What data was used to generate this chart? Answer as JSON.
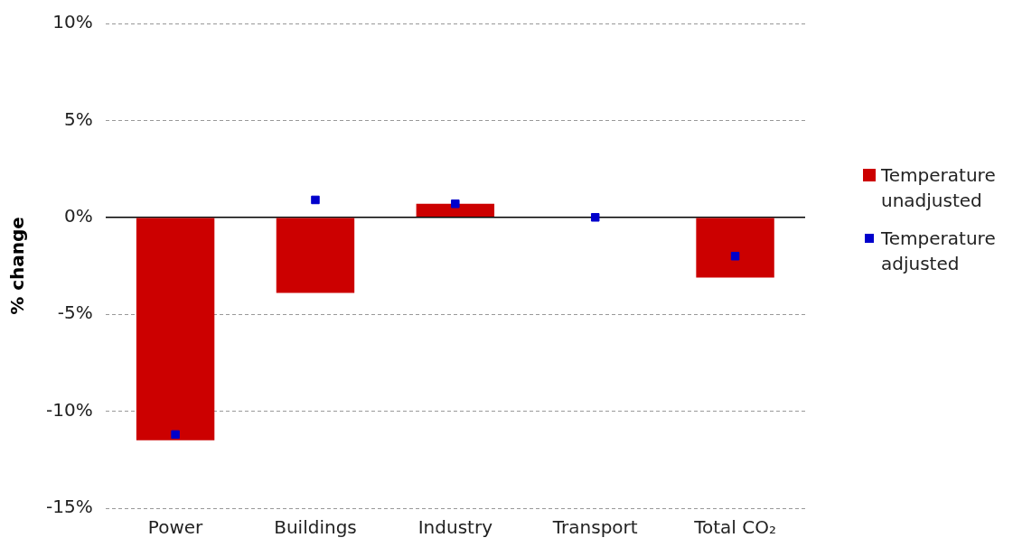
{
  "chart_data": {
    "type": "bar",
    "ylabel": "% change",
    "categories": [
      "Power",
      "Buildings",
      "Industry",
      "Transport",
      "Total CO₂"
    ],
    "series": [
      {
        "name": "Temperature unadjusted",
        "color": "#cc0000",
        "values": [
          -11.5,
          -3.9,
          0.7,
          0,
          -3.1
        ]
      },
      {
        "name": "Temperature adjusted",
        "type": "scatter",
        "marker": "square",
        "color": "#0000cc",
        "x": [
          "Power",
          "Buildings",
          "Industry",
          "Transport",
          "Total CO₂"
        ],
        "values": [
          -11.2,
          0.9,
          0.7,
          0,
          -2.0
        ]
      }
    ],
    "ylim": [
      -15,
      10
    ],
    "yticks": [
      {
        "value": -15,
        "label": "-15%"
      },
      {
        "value": -10,
        "label": "-10%"
      },
      {
        "value": -5,
        "label": "-5%"
      },
      {
        "value": 0,
        "label": "0%"
      },
      {
        "value": 5,
        "label": "5%"
      },
      {
        "value": 10,
        "label": "10%"
      }
    ],
    "grid": "y",
    "legend": "right"
  }
}
